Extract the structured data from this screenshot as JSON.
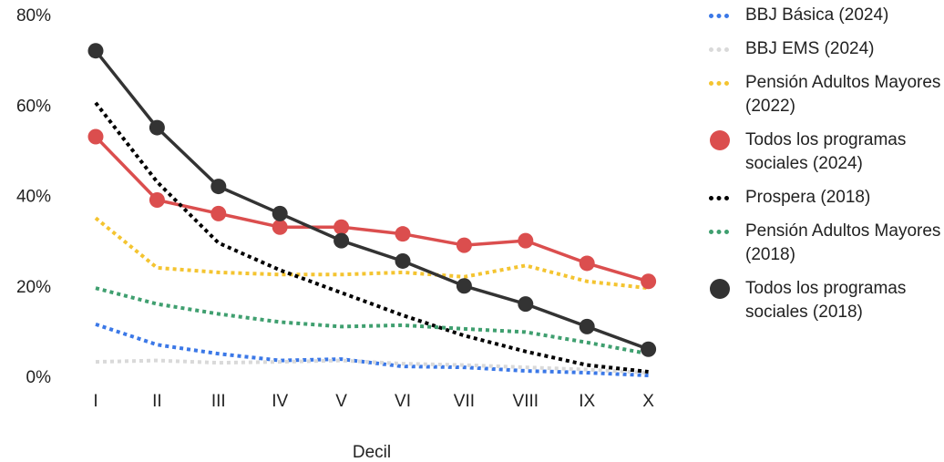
{
  "chart_data": {
    "type": "line",
    "xlabel": "Decil",
    "ylabel": "",
    "categories": [
      "I",
      "II",
      "III",
      "IV",
      "V",
      "VI",
      "VII",
      "VIII",
      "IX",
      "X"
    ],
    "ylim": [
      0,
      80
    ],
    "yticks": [
      "0%",
      "20%",
      "40%",
      "60%",
      "80%"
    ],
    "grid": false,
    "legend_position": "right",
    "series": [
      {
        "name": "BBJ Básica (2024)",
        "color": "#3b78e7",
        "style": "dotted",
        "values": [
          11.5,
          7.0,
          5.0,
          3.5,
          3.8,
          2.2,
          2.0,
          1.2,
          0.8,
          0.2
        ]
      },
      {
        "name": "BBJ EMS (2024)",
        "color": "#d9d9d9",
        "style": "dotted",
        "values": [
          3.2,
          3.5,
          3.0,
          3.2,
          3.5,
          2.8,
          2.5,
          2.0,
          1.5,
          0.8
        ]
      },
      {
        "name": "Pensión Adultos Mayores (2022)",
        "color": "#f4c430",
        "style": "dotted",
        "values": [
          35,
          24,
          23,
          22.5,
          22.5,
          23,
          22,
          24.5,
          21,
          19.5
        ]
      },
      {
        "name": "Todos los programas sociales (2024)",
        "color": "#db4e4e",
        "style": "markers",
        "values": [
          53,
          39,
          36,
          33,
          33,
          31.5,
          29,
          30,
          25,
          21
        ]
      },
      {
        "name": "Prospera (2018)",
        "color": "#000000",
        "style": "dotted",
        "values": [
          60.5,
          43,
          29.5,
          23.5,
          18.5,
          13.5,
          9,
          5.5,
          2.5,
          1.0
        ]
      },
      {
        "name": "Pensión Adultos Mayores (2018)",
        "color": "#3f9f6f",
        "style": "dotted",
        "values": [
          19.5,
          16,
          13.8,
          12,
          11,
          11.3,
          10.5,
          9.8,
          7.5,
          5.0
        ]
      },
      {
        "name": "Todos los programas sociales (2018)",
        "color": "#333333",
        "style": "markers",
        "values": [
          72,
          55,
          42,
          36,
          30,
          25.5,
          20,
          16,
          11,
          6
        ]
      }
    ]
  }
}
